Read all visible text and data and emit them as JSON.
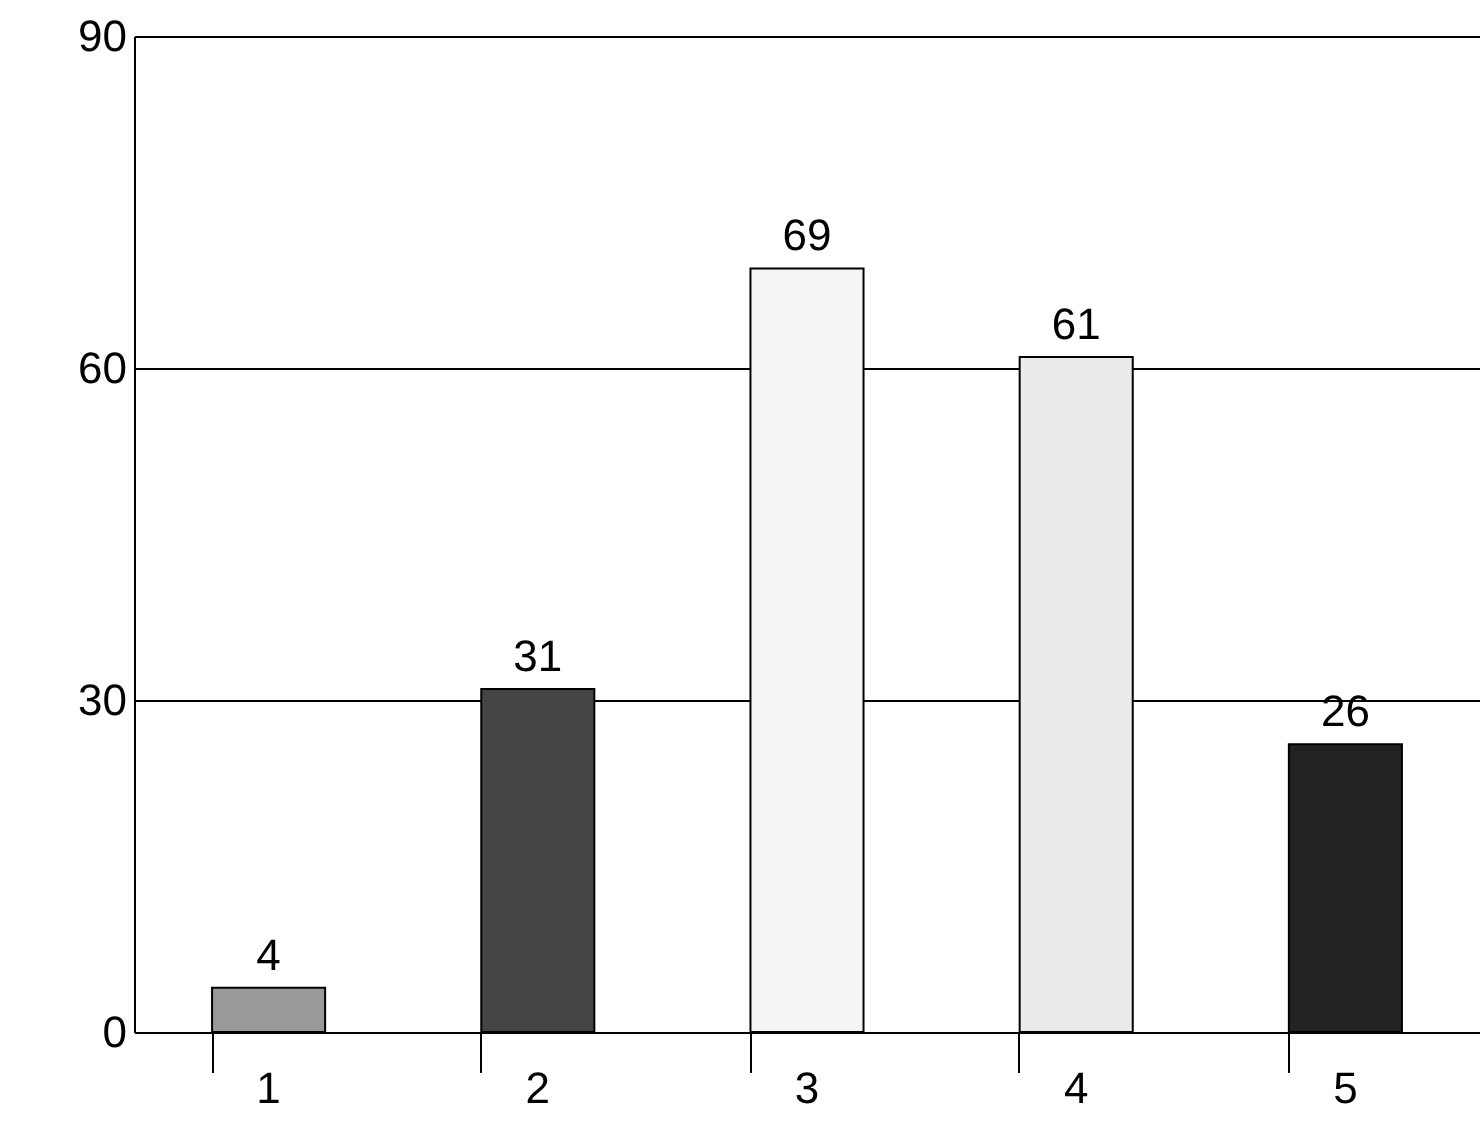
{
  "chart_data": {
    "type": "bar",
    "categories": [
      "1",
      "2",
      "3",
      "4",
      "5"
    ],
    "values": [
      4,
      31,
      69,
      61,
      26
    ],
    "colors": [
      "#999999",
      "#444444",
      "#f5f5f5",
      "#ebebeb",
      "#222222"
    ],
    "ylim": [
      0,
      90
    ],
    "yticks": [
      0,
      30,
      60,
      90
    ],
    "grid": "y",
    "data_labels": true
  }
}
